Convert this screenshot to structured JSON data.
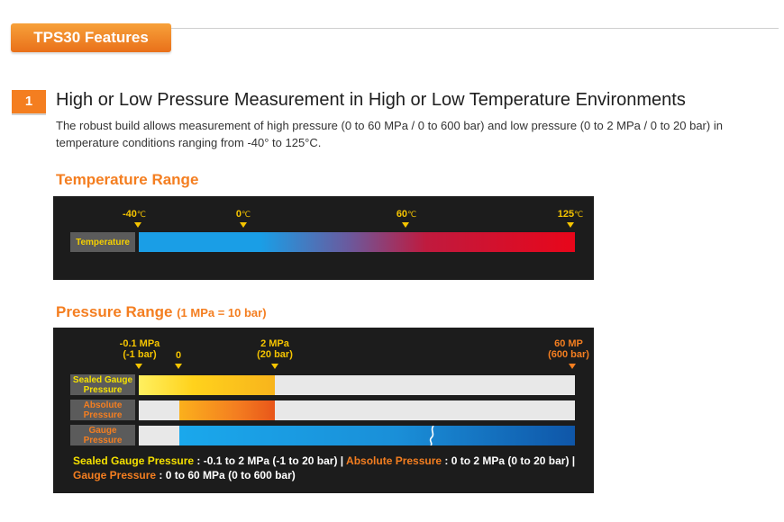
{
  "header": {
    "tab_title": "TPS30 Features"
  },
  "section": {
    "number": "1",
    "title": "High or Low Pressure Measurement in High or Low Temperature Environments",
    "description": "The robust build allows measurement of high pressure (0 to 60 MPa / 0 to 600 bar) and low pressure (0 to 2 MPa / 0 to 20 bar) in temperature conditions ranging from -40° to 125°C."
  },
  "temperature": {
    "heading": "Temperature Range",
    "row_label": "Temperature",
    "ticks": [
      {
        "value": "-40",
        "unit": "℃"
      },
      {
        "value": "0",
        "unit": "℃"
      },
      {
        "value": "60",
        "unit": "℃"
      },
      {
        "value": "125",
        "unit": "℃"
      }
    ],
    "range": {
      "min": -40,
      "max": 125,
      "unit": "℃"
    },
    "colors": {
      "cold": "#1a9ee6",
      "hot": "#e8061a"
    }
  },
  "pressure": {
    "heading": "Pressure Range",
    "heading_note": "(1 MPa = 10 bar)",
    "ticks": [
      {
        "line1": "-0.1 MPa",
        "line2": "(-1 bar)"
      },
      {
        "line1": "0",
        "line2": ""
      },
      {
        "line1": "2 MPa",
        "line2": "(20 bar)"
      },
      {
        "line1": "60 MP",
        "line2": "(600 bar)"
      }
    ],
    "rows": [
      {
        "label_line1": "Sealed Gauge",
        "label_line2": "Pressure",
        "range": "-0.1 to 2 MPa"
      },
      {
        "label_line1": "Absolute",
        "label_line2": "Pressure",
        "range": "0 to 2 MPa"
      },
      {
        "label_line1": "Gauge",
        "label_line2": "Pressure",
        "range": "0 to 60 MPa"
      }
    ],
    "legend": {
      "sealed_label": "Sealed Gauge Pressure",
      "sealed_value": " : -0.1 to 2 MPa (-1 to 20 bar) | ",
      "absolute_label": "Absolute Pressure",
      "absolute_value": " : 0 to 2 MPa (0 to 20 bar) |",
      "gauge_label": "Gauge Pressure",
      "gauge_value": " : 0 to 60 MPa (0 to 600 bar)"
    },
    "colors": {
      "sealed": "#ffd21c",
      "absolute": "#f47e20",
      "gauge": "#1a8fd8",
      "track": "#e8e8e8"
    }
  }
}
